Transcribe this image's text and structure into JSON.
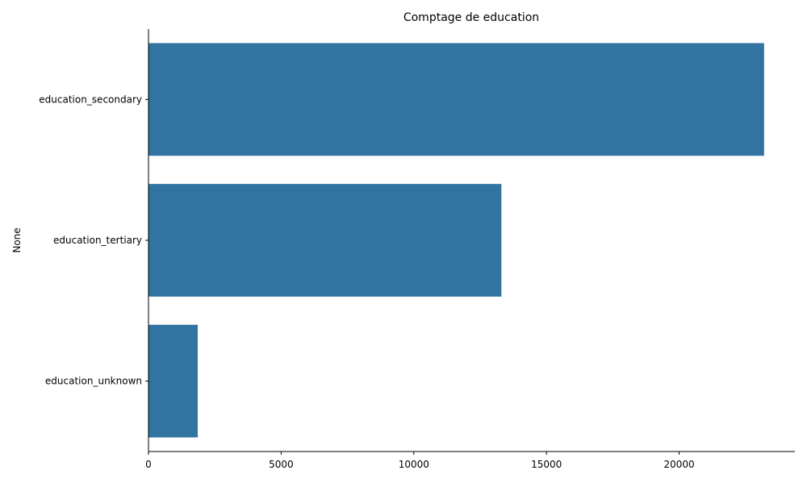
{
  "chart_data": {
    "type": "bar",
    "orientation": "horizontal",
    "title": "Comptage de education",
    "xlabel": "",
    "ylabel": "None",
    "categories": [
      "education_secondary",
      "education_tertiary",
      "education_unknown"
    ],
    "values": [
      23202,
      13301,
      1857
    ],
    "xlim": [
      0,
      24362
    ],
    "xticks": [
      0,
      5000,
      10000,
      15000,
      20000
    ],
    "xtick_labels": [
      "0",
      "5000",
      "10000",
      "15000",
      "20000"
    ],
    "grid": false,
    "legend": "none",
    "bar_color": "#3274a1"
  }
}
